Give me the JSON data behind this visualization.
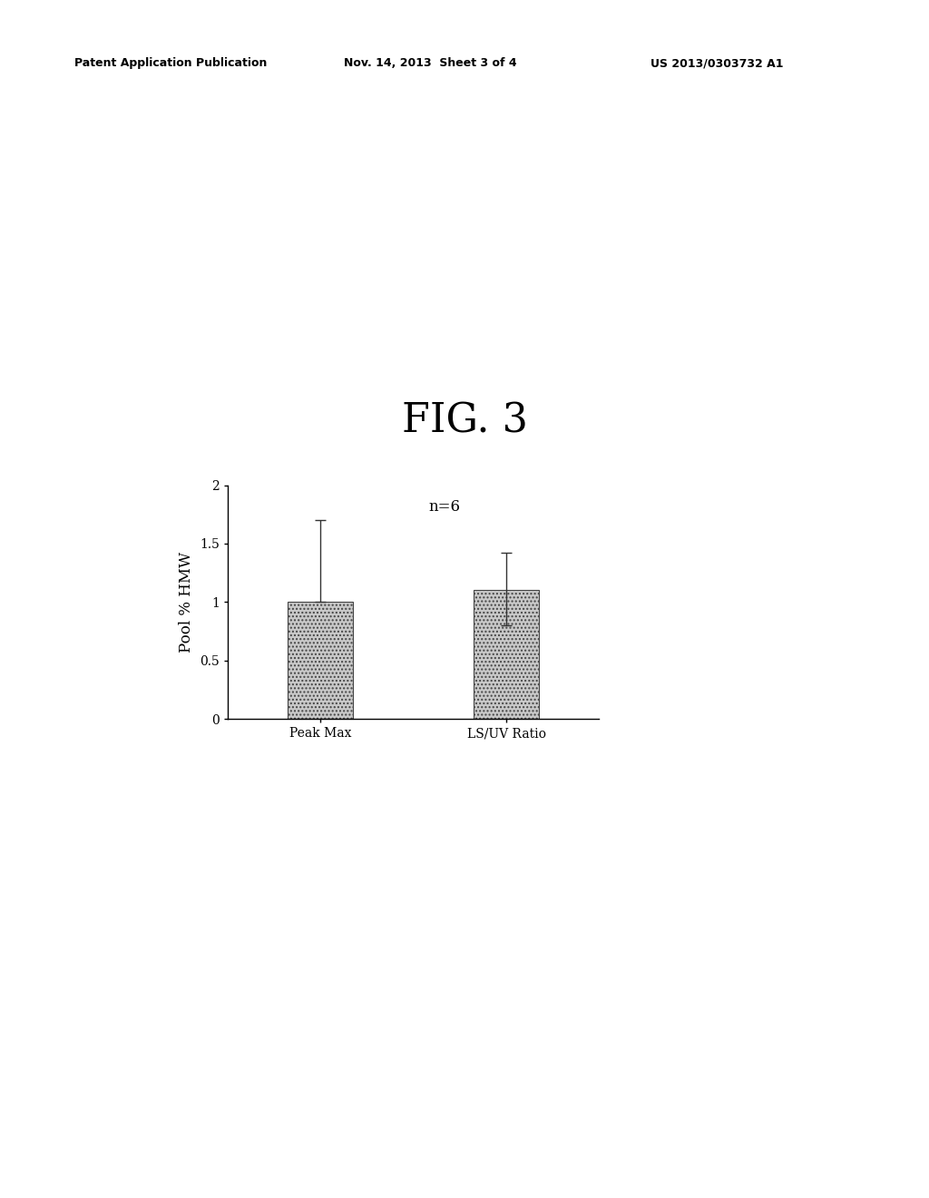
{
  "fig_label": "FIG. 3",
  "header_left": "Patent Application Publication",
  "header_mid": "Nov. 14, 2013  Sheet 3 of 4",
  "header_right": "US 2013/0303732 A1",
  "categories": [
    "Peak Max",
    "LS/UV Ratio"
  ],
  "values": [
    1.0,
    1.1
  ],
  "error_upper": [
    0.7,
    0.32
  ],
  "error_lower": [
    0.0,
    0.3
  ],
  "ylim": [
    0,
    2
  ],
  "yticks": [
    0,
    0.5,
    1.0,
    1.5,
    2
  ],
  "ylabel": "Pool % HMW",
  "annotation": "n=6",
  "bar_color": "#c8c8c8",
  "bar_edgecolor": "#444444",
  "bar_hatch": "....",
  "bar_width": 0.35,
  "background_color": "#ffffff",
  "fig_label_fontsize": 32,
  "axis_label_fontsize": 12,
  "tick_fontsize": 10,
  "annotation_fontsize": 12,
  "header_fontsize": 9
}
